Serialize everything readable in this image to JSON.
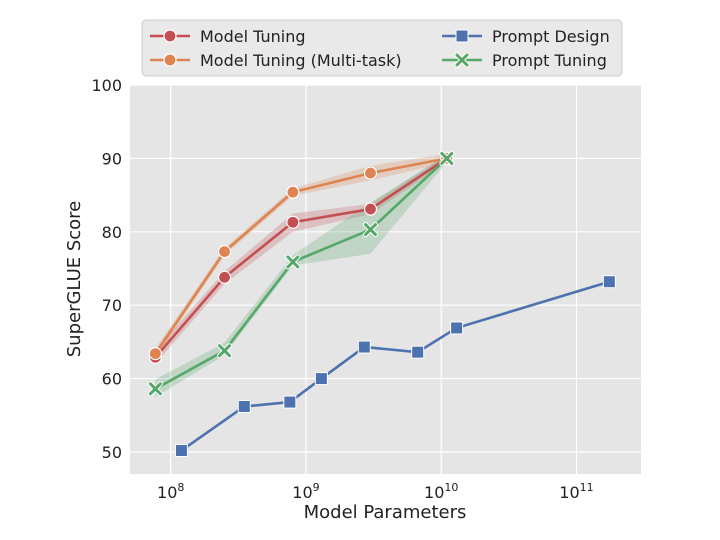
{
  "chart_data": {
    "type": "line",
    "title": "",
    "xlabel": "Model Parameters",
    "ylabel": "SuperGLUE Score",
    "x_scale": "log",
    "xlim": [
      50000000,
      300000000000
    ],
    "ylim": [
      47,
      100
    ],
    "x_ticks": [
      {
        "value": 100000000,
        "base": "10",
        "exp": "8"
      },
      {
        "value": 1000000000,
        "base": "10",
        "exp": "9"
      },
      {
        "value": 10000000000,
        "base": "10",
        "exp": "10"
      },
      {
        "value": 100000000000,
        "base": "10",
        "exp": "11"
      }
    ],
    "y_ticks": [
      50,
      60,
      70,
      80,
      90,
      100
    ],
    "grid": true,
    "legend_position": "top",
    "series": [
      {
        "name": "Model Tuning",
        "color": "#c44e52",
        "marker": "circle",
        "x": [
          77000000,
          250000000,
          800000000,
          3000000000,
          11000000000
        ],
        "y": [
          62.9,
          73.8,
          81.3,
          83.1,
          90.0
        ],
        "band_low": [
          62.0,
          72.9,
          80.0,
          82.4,
          89.5
        ],
        "band_high": [
          63.8,
          74.6,
          82.5,
          83.8,
          90.5
        ]
      },
      {
        "name": "Model Tuning (Multi-task)",
        "color": "#dd8452",
        "marker": "circle",
        "x": [
          77000000,
          250000000,
          800000000,
          3000000000,
          11000000000
        ],
        "y": [
          63.4,
          77.3,
          85.4,
          88.0,
          90.0
        ],
        "band_low": [
          62.7,
          76.8,
          84.9,
          87.0,
          89.4
        ],
        "band_high": [
          64.1,
          77.8,
          85.9,
          89.0,
          90.6
        ]
      },
      {
        "name": "Prompt Design",
        "color": "#4c72b0",
        "marker": "square",
        "x": [
          120000000,
          350000000,
          760000000,
          1300000000,
          2700000000,
          6700000000,
          13000000000,
          175000000000
        ],
        "y": [
          50.2,
          56.2,
          56.8,
          60.0,
          64.3,
          63.6,
          66.9,
          73.2
        ]
      },
      {
        "name": "Prompt Tuning",
        "color": "#55a868",
        "marker": "x",
        "x": [
          77000000,
          250000000,
          800000000,
          3000000000,
          11000000000
        ],
        "y": [
          58.6,
          63.8,
          75.9,
          80.3,
          90.0
        ],
        "band_low": [
          57.5,
          63.2,
          75.4,
          77.0,
          89.5
        ],
        "band_high": [
          59.9,
          64.9,
          76.8,
          84.0,
          90.5
        ]
      }
    ]
  }
}
